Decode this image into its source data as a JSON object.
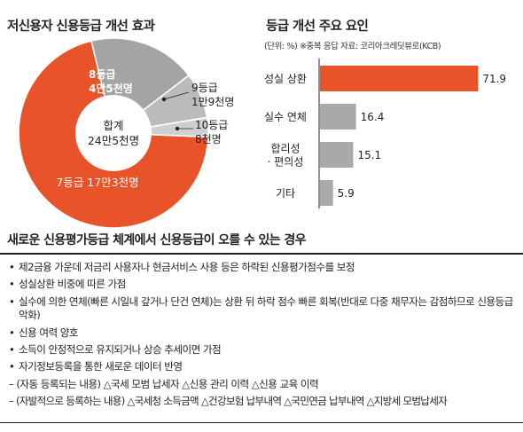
{
  "chart_data": [
    {
      "type": "pie",
      "title": "저신용자 신용등급 개선 효과",
      "center_label": "합계",
      "center_value": "24만5천명",
      "slices": [
        {
          "category": "7등급",
          "display": "17만3천명",
          "value": 173,
          "color": "#e8532a"
        },
        {
          "category": "8등급",
          "display": "4만5천명",
          "value": 45,
          "color": "#a4a4a4"
        },
        {
          "category": "9등급",
          "display": "1만9천명",
          "value": 19,
          "color": "#bbbbbb"
        },
        {
          "category": "10등급",
          "display": "8천명",
          "value": 8,
          "color": "#cfcfcf"
        }
      ]
    },
    {
      "type": "bar",
      "title": "등급 개선 주요 요인",
      "unit": "(단위: %)",
      "note": "※중복 응답 자료: 코리아크레딧뷰로(KCB)",
      "categories": [
        "성실 상환",
        "실수 연체",
        "합리성 · 편의성",
        "기타"
      ],
      "category_lines": [
        [
          "성실 상환"
        ],
        [
          "실수 연체"
        ],
        [
          "합리성",
          "· 편의성"
        ],
        [
          "기타"
        ]
      ],
      "values": [
        71.9,
        16.4,
        15.1,
        5.9
      ],
      "labels": [
        "71.9",
        "16.4",
        "15.1",
        "5.9"
      ],
      "colors": [
        "#e8532a",
        "#a9a9a9",
        "#a9a9a9",
        "#a9a9a9"
      ],
      "xlim": [
        0,
        75
      ]
    }
  ],
  "section_title": "새로운 신용평가등급 체계에서 신용등급이 오를 수 있는 경우",
  "items": [
    "제2금융 가운데 저금리 사용자나 현금서비스 사용 등은 하락된 신용평가점수를 보정",
    "성실상환 비중에 따른 가점",
    "실수에 의한 연체(빠른 시일내 갚거나 단건 연체)는 상환 뒤 하락 점수 빠른 회복(반대로 다중 채무자는 감점하므로 신용등급 악화)",
    "신용 여력 양호",
    "소득이 안정적으로 유지되거나 상승 추세이면 가점",
    "자기정보등록을 통한 새로운 데이터 반영"
  ],
  "subitems": [
    "– (자동 등록되는 내용) △국세 모범 납세자 △신용 관리 이력 △신용 교육 이력",
    "– (자발적으로 등록하는 내용) △국세청 소득금액 △건강보험 납부내역 △국민연금 납부내역 △지방세 모범납세자"
  ],
  "colors": {
    "accent": "#e8532a",
    "gray_bar": "#a9a9a9",
    "rule": "#231f20"
  }
}
